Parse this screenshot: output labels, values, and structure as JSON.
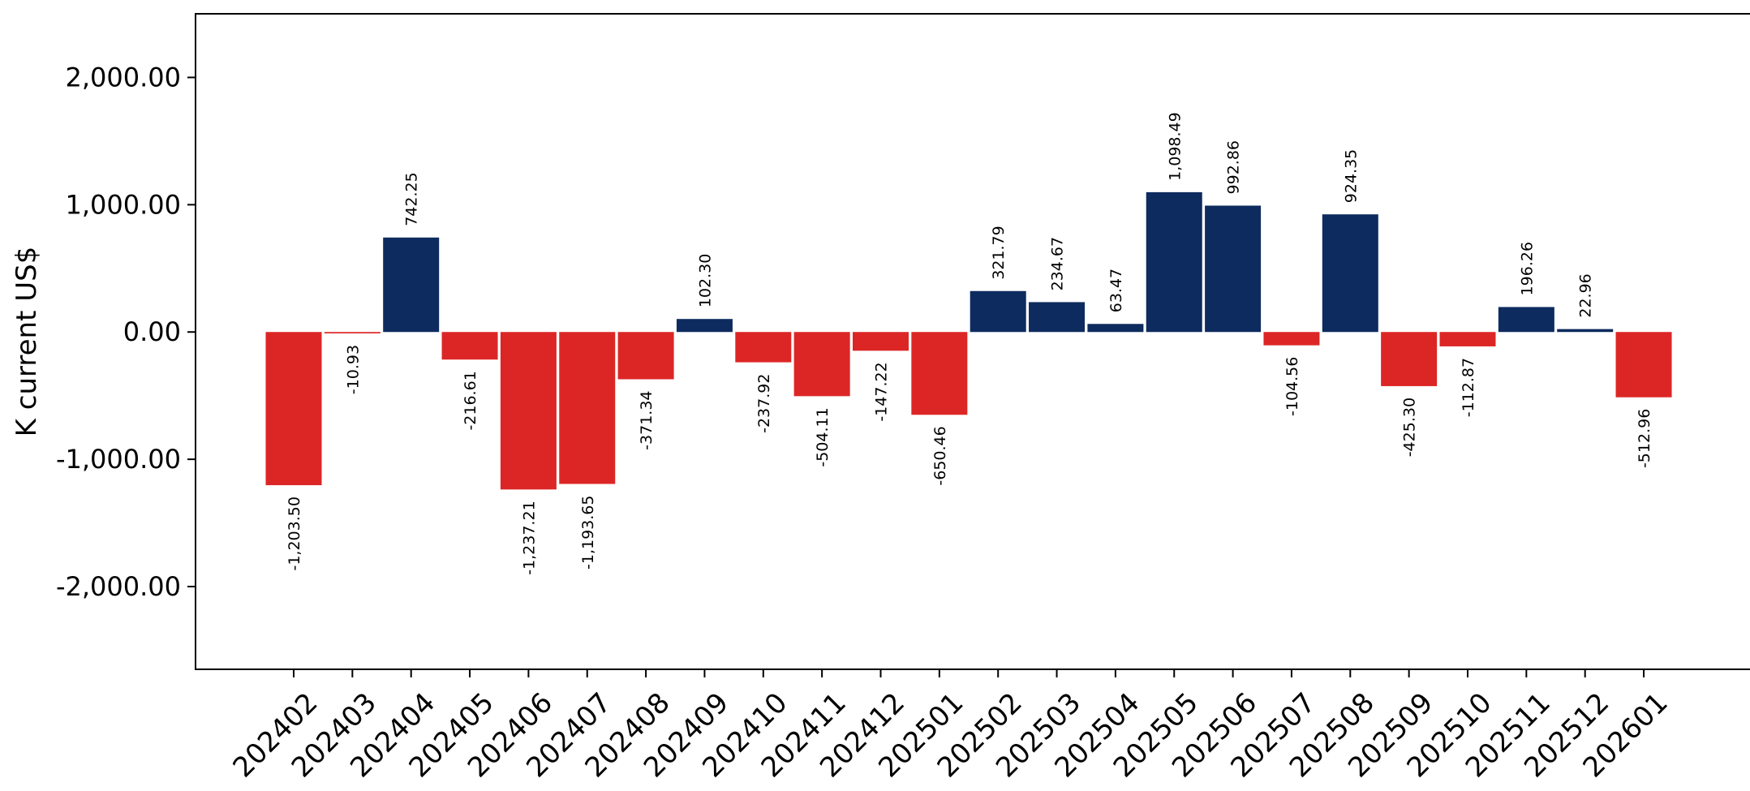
{
  "chart_data": {
    "type": "bar",
    "title": "",
    "xlabel": "",
    "ylabel": "K current US$",
    "ylim": [
      -2650,
      2500
    ],
    "yticks": [
      -2000,
      -1000,
      0,
      1000,
      2000
    ],
    "ytick_labels": [
      "-2,000.00",
      "-1,000.00",
      "0.00",
      "1,000.00",
      "2,000.00"
    ],
    "grid": false,
    "legend": "none",
    "colors": {
      "positive": "#0d2b5e",
      "negative": "#dc2626"
    },
    "categories": [
      "202402",
      "202403",
      "202404",
      "202405",
      "202406",
      "202407",
      "202408",
      "202409",
      "202410",
      "202411",
      "202412",
      "202501",
      "202502",
      "202503",
      "202504",
      "202505",
      "202506",
      "202507",
      "202508",
      "202509",
      "202510",
      "202511",
      "202512",
      "202601"
    ],
    "values": [
      -1203.5,
      -10.93,
      742.25,
      -216.61,
      -1237.21,
      -1193.65,
      -371.34,
      102.3,
      -237.92,
      -504.11,
      -147.22,
      -650.46,
      321.79,
      234.67,
      63.47,
      1098.49,
      992.86,
      -104.56,
      924.35,
      -425.3,
      -112.87,
      196.26,
      22.96,
      -512.96
    ],
    "value_labels": [
      "-1,203.50",
      "-10.93",
      "742.25",
      "-216.61",
      "-1,237.21",
      "-1,193.65",
      "-371.34",
      "102.30",
      "-237.92",
      "-504.11",
      "-147.22",
      "-650.46",
      "321.79",
      "234.67",
      "63.47",
      "1,098.49",
      "992.86",
      "-104.56",
      "924.35",
      "-425.30",
      "-112.87",
      "196.26",
      "22.96",
      "-512.96"
    ]
  }
}
